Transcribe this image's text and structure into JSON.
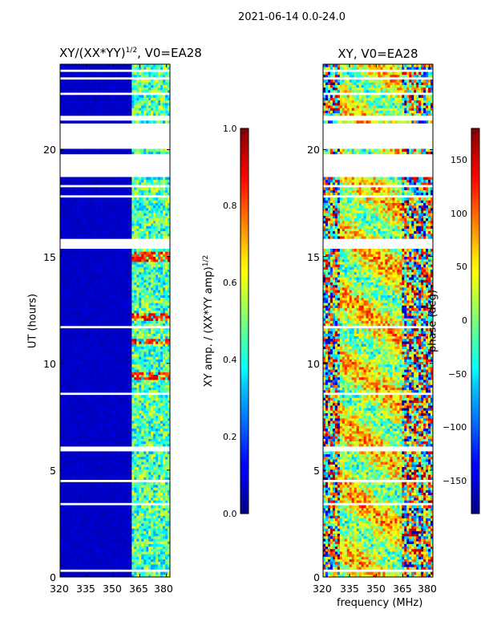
{
  "suptitle": "2021-06-14 0.0-24.0",
  "chart_data": [
    {
      "type": "heatmap",
      "title_prefix": "XY/(XX*YY)",
      "title_exponent": "1/2",
      "title_suffix": ", V0=EA28",
      "xlabel": "",
      "ylabel": "UT (hours)",
      "xlim": [
        320,
        382
      ],
      "ylim": [
        0,
        24
      ],
      "xticks": [
        "320",
        "335",
        "350",
        "365",
        "380"
      ],
      "xtick_values": [
        320,
        335,
        350,
        365,
        380
      ],
      "yticks": [
        "0",
        "5",
        "10",
        "15",
        "20"
      ],
      "ytick_values": [
        0,
        5,
        10,
        15,
        20
      ],
      "colormap": "jet",
      "colorbar": {
        "label": "XY amp. / (XX*YY amp)",
        "label_exponent": "1/2",
        "range": [
          0.0,
          1.0
        ],
        "ticks": [
          "0.0",
          "0.2",
          "0.4",
          "0.6",
          "0.8",
          "1.0"
        ],
        "tick_values": [
          0.0,
          0.2,
          0.4,
          0.6,
          0.8,
          1.0
        ]
      },
      "structure": {
        "background_value": 0.05,
        "active_band_mhz": [
          360,
          382
        ],
        "active_value": 0.45,
        "high_amplitude_hours": [
          [
            9.3,
            9.6
          ],
          [
            10.9,
            11.2
          ],
          [
            12.0,
            12.4
          ],
          [
            14.8,
            15.2
          ]
        ],
        "high_value": 0.85
      },
      "gaps_hours": [
        [
          0.3,
          0.35
        ],
        [
          0.6,
          0.65
        ],
        [
          1.4,
          1.5
        ],
        [
          2.0,
          2.05
        ],
        [
          2.5,
          2.55
        ],
        [
          3.4,
          3.5
        ],
        [
          4.5,
          4.55
        ],
        [
          5.6,
          5.65
        ],
        [
          5.9,
          6.1
        ],
        [
          6.6,
          6.65
        ],
        [
          7.4,
          7.45
        ],
        [
          8.5,
          8.6
        ],
        [
          11.7,
          11.75
        ],
        [
          12.2,
          12.25
        ],
        [
          13.4,
          13.45
        ],
        [
          15.4,
          15.8
        ],
        [
          16.3,
          16.35
        ],
        [
          17.0,
          17.1
        ],
        [
          17.5,
          17.55
        ],
        [
          17.8,
          17.85
        ],
        [
          18.2,
          18.3
        ],
        [
          18.7,
          19.8
        ],
        [
          20.0,
          21.2
        ],
        [
          21.4,
          21.6
        ],
        [
          22.6,
          22.7
        ],
        [
          23.3,
          23.4
        ],
        [
          23.7,
          23.8
        ]
      ]
    },
    {
      "type": "heatmap",
      "title": "XY, V0=EA28",
      "xlabel": "frequency (MHz)",
      "ylabel": "",
      "xlim": [
        320,
        382
      ],
      "ylim": [
        0,
        24
      ],
      "xticks": [
        "320",
        "335",
        "350",
        "365",
        "380"
      ],
      "xtick_values": [
        320,
        335,
        350,
        365,
        380
      ],
      "yticks": [
        "0",
        "5",
        "10",
        "15",
        "20"
      ],
      "ytick_values": [
        0,
        5,
        10,
        15,
        20
      ],
      "colormap": "jet",
      "colorbar": {
        "label": "phase (deg)",
        "range": [
          -180,
          180
        ],
        "ticks": [
          "150",
          "100",
          "50",
          "0",
          "−50",
          "−100",
          "−150"
        ],
        "tick_values": [
          150,
          100,
          50,
          0,
          -50,
          -100,
          -150
        ]
      },
      "structure": {
        "description_values": "phase wraps across full range, concentrated near +30 deg between 330-365 MHz",
        "center_phase_deg": 30
      },
      "gaps_hours": [
        [
          0.3,
          0.35
        ],
        [
          0.6,
          0.65
        ],
        [
          1.4,
          1.5
        ],
        [
          2.0,
          2.05
        ],
        [
          2.5,
          2.55
        ],
        [
          3.4,
          3.5
        ],
        [
          4.5,
          4.55
        ],
        [
          5.6,
          5.65
        ],
        [
          5.9,
          6.1
        ],
        [
          6.6,
          6.65
        ],
        [
          7.4,
          7.45
        ],
        [
          8.5,
          8.6
        ],
        [
          11.7,
          11.75
        ],
        [
          12.2,
          12.25
        ],
        [
          13.4,
          13.45
        ],
        [
          15.4,
          15.8
        ],
        [
          16.3,
          16.35
        ],
        [
          17.0,
          17.1
        ],
        [
          17.5,
          17.55
        ],
        [
          17.8,
          17.85
        ],
        [
          18.2,
          18.3
        ],
        [
          18.7,
          19.8
        ],
        [
          20.0,
          21.2
        ],
        [
          21.4,
          21.6
        ],
        [
          22.6,
          22.7
        ],
        [
          23.3,
          23.4
        ],
        [
          23.7,
          23.8
        ]
      ]
    }
  ]
}
